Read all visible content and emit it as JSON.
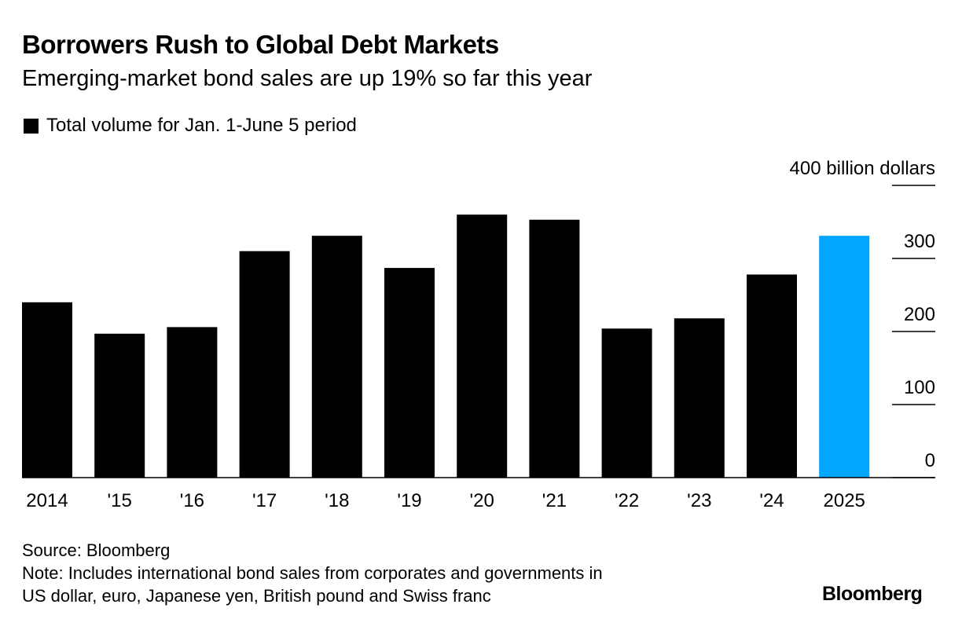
{
  "header": {
    "title": "Borrowers Rush to Global Debt Markets",
    "subtitle": "Emerging-market bond sales are up 19% so far this year"
  },
  "legend": {
    "label": "Total volume for Jan. 1-June 5 period"
  },
  "chart_data": {
    "type": "bar",
    "title": "Borrowers Rush to Global Debt Markets",
    "subtitle": "Emerging-market bond sales are up 19% so far this year",
    "categories": [
      "2014",
      "'15",
      "'16",
      "'17",
      "'18",
      "'19",
      "'20",
      "'21",
      "'22",
      "'23",
      "'24",
      "2025"
    ],
    "series": [
      {
        "name": "Total volume for Jan. 1-June 5 period",
        "values": [
          240,
          197,
          206,
          310,
          331,
          287,
          360,
          353,
          204,
          218,
          278,
          331
        ]
      }
    ],
    "ylim": [
      0,
      400
    ],
    "yticks": [
      0,
      100,
      200,
      300,
      400
    ],
    "ytick_labels": [
      "0",
      "100",
      "200",
      "300",
      "400 billion dollars"
    ],
    "ylabel": "billion dollars",
    "xlabel": "",
    "axis_position": "right",
    "grid": false,
    "legend_position": "top-left",
    "colors": {
      "default": "#000000",
      "highlight": "#00a6ff",
      "highlight_category": "2025"
    }
  },
  "footer": {
    "source": "Source: Bloomberg",
    "note_line1": "Note: Includes international bond sales from corporates and governments in",
    "note_line2": "US dollar, euro, Japanese yen, British pound and Swiss franc"
  },
  "branding": {
    "logo_text": "Bloomberg"
  }
}
